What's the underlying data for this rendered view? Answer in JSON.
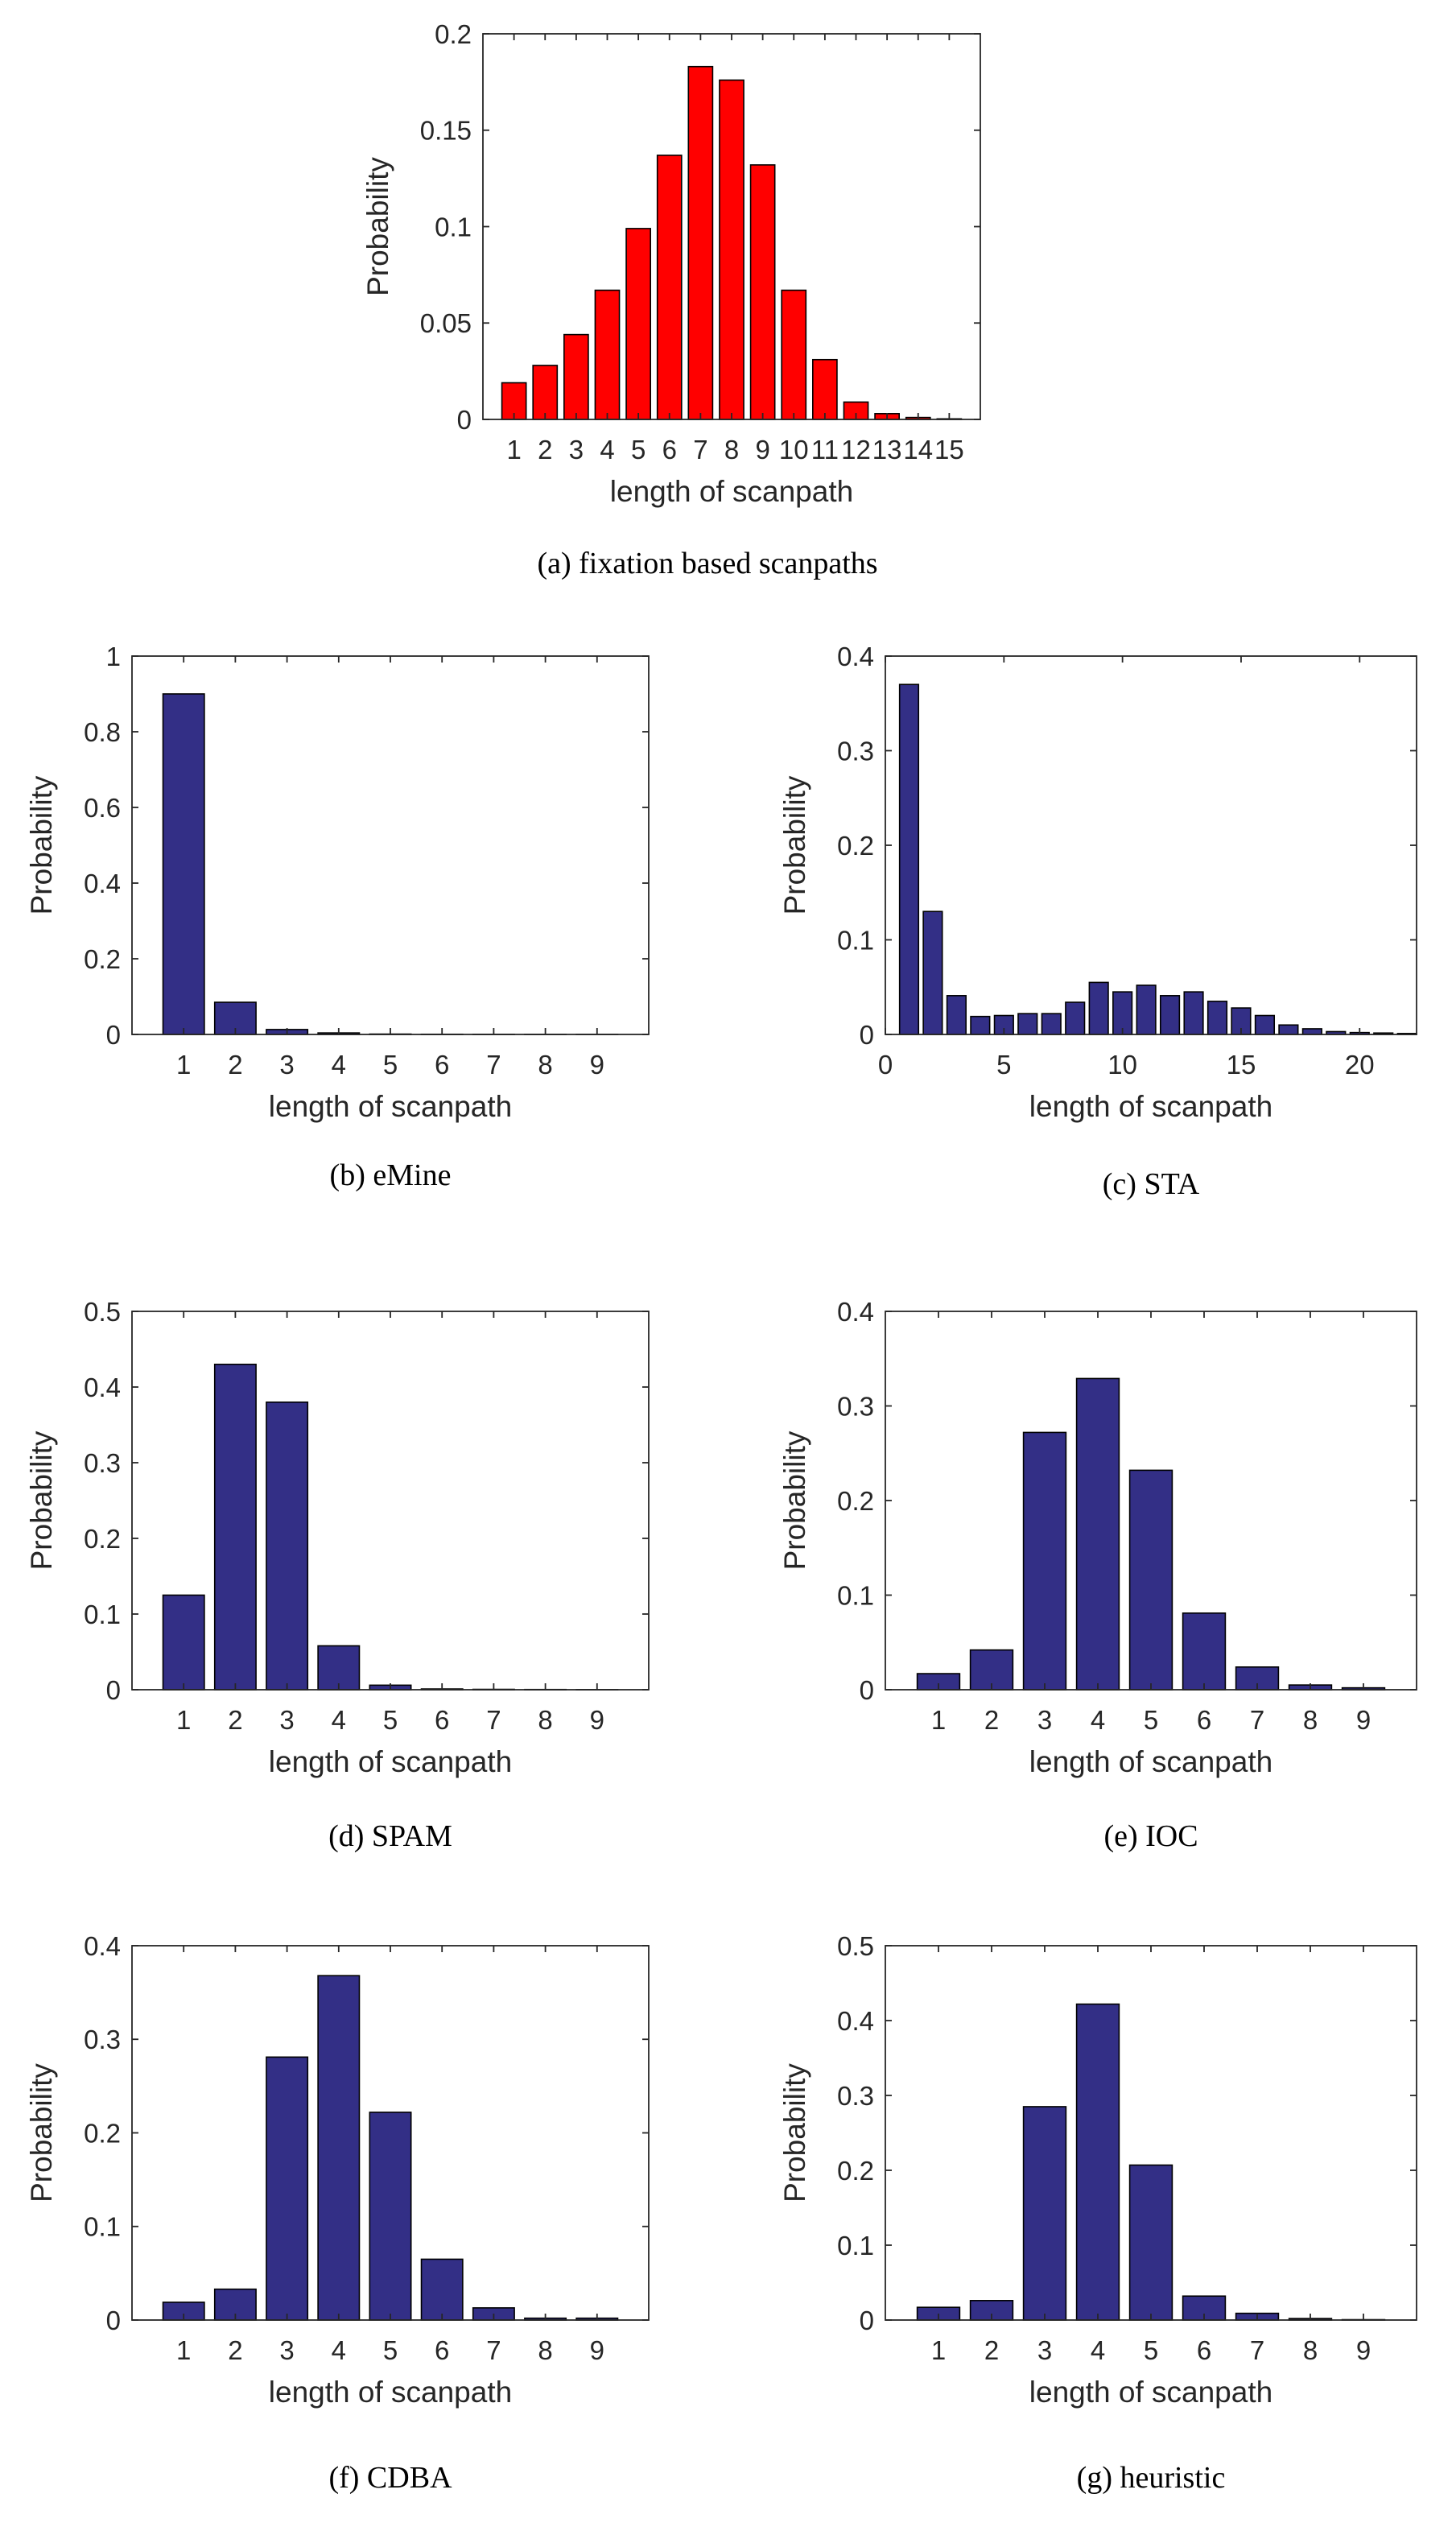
{
  "colors": {
    "panel_a_bar": "#ff0000",
    "bar_default": "#332f86",
    "bar_edge": "#000000",
    "axis": "#262626"
  },
  "chart_data": [
    {
      "id": "a",
      "type": "bar",
      "title": "",
      "caption": "(a) fixation based scanpaths",
      "xlabel": "length of scanpath",
      "ylabel": "Probability",
      "categories": [
        "1",
        "2",
        "3",
        "4",
        "5",
        "6",
        "7",
        "8",
        "9",
        "10",
        "11",
        "12",
        "13",
        "14",
        "15"
      ],
      "values": [
        0.019,
        0.028,
        0.044,
        0.067,
        0.099,
        0.137,
        0.183,
        0.176,
        0.132,
        0.067,
        0.031,
        0.009,
        0.003,
        0.001,
        0.0003
      ],
      "ylim": [
        0,
        0.2
      ],
      "yticks": [
        "0",
        "0.05",
        "0.1",
        "0.15",
        "0.2"
      ],
      "ytick_values": [
        0,
        0.05,
        0.1,
        0.15,
        0.2
      ],
      "grid": false,
      "bar_color": "#ff0000"
    },
    {
      "id": "b",
      "type": "bar",
      "title": "",
      "caption": "(b) eMine",
      "xlabel": "length of scanpath",
      "ylabel": "Probability",
      "categories": [
        "1",
        "2",
        "3",
        "4",
        "5",
        "6",
        "7",
        "8",
        "9"
      ],
      "values": [
        0.9,
        0.085,
        0.013,
        0.004,
        0.001,
        0.0005,
        0.0003,
        0.0002,
        0.0001
      ],
      "ylim": [
        0,
        1
      ],
      "yticks": [
        "0",
        "0.2",
        "0.4",
        "0.6",
        "0.8",
        "1"
      ],
      "ytick_values": [
        0,
        0.2,
        0.4,
        0.6,
        0.8,
        1
      ],
      "grid": false,
      "bar_color": "#332f86"
    },
    {
      "id": "c",
      "type": "bar",
      "title": "",
      "caption": "(c) STA",
      "xlabel": "length of scanpath",
      "ylabel": "Probability",
      "numeric_x": true,
      "xlim": [
        0,
        22.4
      ],
      "xtick_values": [
        0,
        5,
        10,
        15,
        20
      ],
      "xticks": [
        "0",
        "5",
        "10",
        "15",
        "20"
      ],
      "x": [
        1,
        2,
        3,
        4,
        5,
        6,
        7,
        8,
        9,
        10,
        11,
        12,
        13,
        14,
        15,
        16,
        17,
        18,
        19,
        20,
        21,
        22
      ],
      "values": [
        0.37,
        0.13,
        0.041,
        0.019,
        0.02,
        0.022,
        0.022,
        0.034,
        0.055,
        0.045,
        0.052,
        0.041,
        0.045,
        0.035,
        0.028,
        0.02,
        0.01,
        0.006,
        0.003,
        0.002,
        0.0015,
        0.001
      ],
      "ylim": [
        0,
        0.4
      ],
      "yticks": [
        "0",
        "0.1",
        "0.2",
        "0.3",
        "0.4"
      ],
      "ytick_values": [
        0,
        0.1,
        0.2,
        0.3,
        0.4
      ],
      "grid": false,
      "bar_color": "#332f86"
    },
    {
      "id": "d",
      "type": "bar",
      "title": "",
      "caption": "(d) SPAM",
      "xlabel": "length of scanpath",
      "ylabel": "Probability",
      "categories": [
        "1",
        "2",
        "3",
        "4",
        "5",
        "6",
        "7",
        "8",
        "9"
      ],
      "values": [
        0.125,
        0.43,
        0.38,
        0.058,
        0.006,
        0.001,
        0.0005,
        0.0003,
        0.0001
      ],
      "ylim": [
        0,
        0.5
      ],
      "yticks": [
        "0",
        "0.1",
        "0.2",
        "0.3",
        "0.4",
        "0.5"
      ],
      "ytick_values": [
        0,
        0.1,
        0.2,
        0.3,
        0.4,
        0.5
      ],
      "grid": false,
      "bar_color": "#332f86"
    },
    {
      "id": "e",
      "type": "bar",
      "title": "",
      "caption": "(e) IOC",
      "xlabel": "length of scanpath",
      "ylabel": "Probability",
      "categories": [
        "1",
        "2",
        "3",
        "4",
        "5",
        "6",
        "7",
        "8",
        "9"
      ],
      "values": [
        0.017,
        0.042,
        0.272,
        0.329,
        0.232,
        0.081,
        0.024,
        0.005,
        0.002
      ],
      "ylim": [
        0,
        0.4
      ],
      "yticks": [
        "0",
        "0.1",
        "0.2",
        "0.3",
        "0.4"
      ],
      "ytick_values": [
        0,
        0.1,
        0.2,
        0.3,
        0.4
      ],
      "grid": false,
      "bar_color": "#332f86"
    },
    {
      "id": "f",
      "type": "bar",
      "title": "",
      "caption": "(f) CDBA",
      "xlabel": "length of scanpath",
      "ylabel": "Probability",
      "categories": [
        "1",
        "2",
        "3",
        "4",
        "5",
        "6",
        "7",
        "8",
        "9"
      ],
      "values": [
        0.019,
        0.033,
        0.281,
        0.368,
        0.222,
        0.065,
        0.013,
        0.002,
        0.002
      ],
      "ylim": [
        0,
        0.4
      ],
      "yticks": [
        "0",
        "0.1",
        "0.2",
        "0.3",
        "0.4"
      ],
      "ytick_values": [
        0,
        0.1,
        0.2,
        0.3,
        0.4
      ],
      "grid": false,
      "bar_color": "#332f86"
    },
    {
      "id": "g",
      "type": "bar",
      "title": "",
      "caption": "(g) heuristic",
      "xlabel": "length of scanpath",
      "ylabel": "Probability",
      "categories": [
        "1",
        "2",
        "3",
        "4",
        "5",
        "6",
        "7",
        "8",
        "9"
      ],
      "values": [
        0.017,
        0.026,
        0.285,
        0.422,
        0.207,
        0.032,
        0.009,
        0.002,
        0.0005
      ],
      "ylim": [
        0,
        0.5
      ],
      "yticks": [
        "0",
        "0.1",
        "0.2",
        "0.3",
        "0.4",
        "0.5"
      ],
      "ytick_values": [
        0,
        0.1,
        0.2,
        0.3,
        0.4,
        0.5
      ],
      "grid": false,
      "bar_color": "#332f86"
    }
  ]
}
